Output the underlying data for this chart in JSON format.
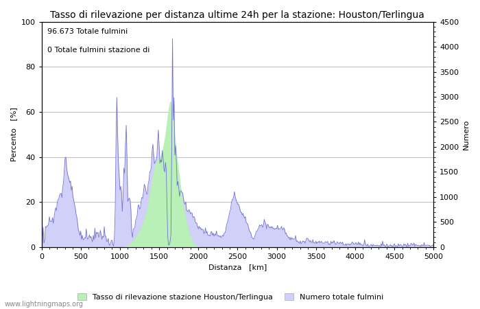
{
  "title": "Tasso di rilevazione per distanza ultime 24h per la stazione: Houston/Terlingua",
  "xlabel": "Distanza   [km]",
  "ylabel_left": "Percento   [%]",
  "ylabel_right": "Numero",
  "annotation_line1": "96.673 Totale fulmini",
  "annotation_line2": "0 Totale fulmini stazione di",
  "xlim": [
    0,
    5000
  ],
  "ylim_left": [
    0,
    100
  ],
  "ylim_right": [
    0,
    4500
  ],
  "xticks": [
    0,
    500,
    1000,
    1500,
    2000,
    2500,
    3000,
    3500,
    4000,
    4500,
    5000
  ],
  "yticks_left": [
    0,
    20,
    40,
    60,
    80,
    100
  ],
  "yticks_right": [
    0,
    500,
    1000,
    1500,
    2000,
    2500,
    3000,
    3500,
    4000,
    4500
  ],
  "legend_label_green": "Tasso di rilevazione stazione Houston/Terlingua",
  "legend_label_blue": "Numero totale fulmini",
  "fill_green_color": "#b8f0b8",
  "fill_blue_color": "#d0d0f8",
  "line_color": "#7070cc",
  "bg_color": "#ffffff",
  "grid_color": "#c0c0c0",
  "watermark": "www.lightningmaps.org",
  "title_fontsize": 10,
  "axis_fontsize": 8,
  "tick_fontsize": 8,
  "annotation_fontsize": 8
}
